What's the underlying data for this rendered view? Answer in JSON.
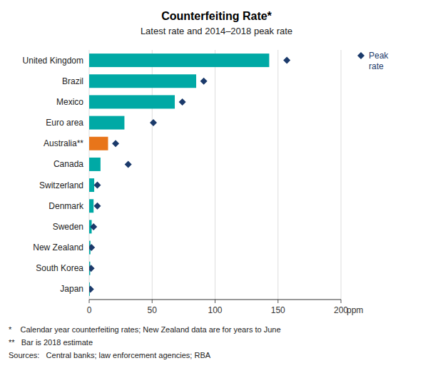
{
  "chart_data": {
    "type": "bar",
    "orientation": "horizontal",
    "title": "Counterfeiting Rate*",
    "subtitle": "Latest rate and 2014–2018 peak rate",
    "x_label": "ppm",
    "annotations": [
      "*    Calendar year counterfeiting rates; New Zealand data are for years to June",
      "**   Bar is 2018 estimate",
      "Sources:   Central banks; law enforcement agencies; RBA"
    ],
    "categories": [
      "United Kingdom",
      "Brazil",
      "Mexico",
      "Euro area",
      "Australia**",
      "Canada",
      "Switzerland",
      "Denmark",
      "Sweden",
      "New Zealand",
      "South Korea",
      "Japan"
    ],
    "series": [
      {
        "values": [
          143,
          85,
          68,
          28,
          15,
          9,
          4,
          3.5,
          2,
          1,
          0.8,
          0.5
        ],
        "colors": [
          "#00A9A5",
          "#00A9A5",
          "#00A9A5",
          "#00A9A5",
          "#E8751A",
          "#00A9A5",
          "#00A9A5",
          "#00A9A5",
          "#00A9A5",
          "#00A9A5",
          "#00A9A5",
          "#00A9A5"
        ]
      },
      {
        "name": "Peak\nrate",
        "type": "scatter",
        "marker": "diamond",
        "color": "#1B3A6B",
        "values": [
          157,
          91,
          74,
          51,
          21,
          31,
          6.5,
          6.5,
          3.5,
          1.8,
          1.5,
          1.0
        ]
      }
    ],
    "xlim": [
      0,
      200
    ],
    "xticks": [
      0,
      50,
      100,
      150,
      200
    ],
    "grid": true
  }
}
